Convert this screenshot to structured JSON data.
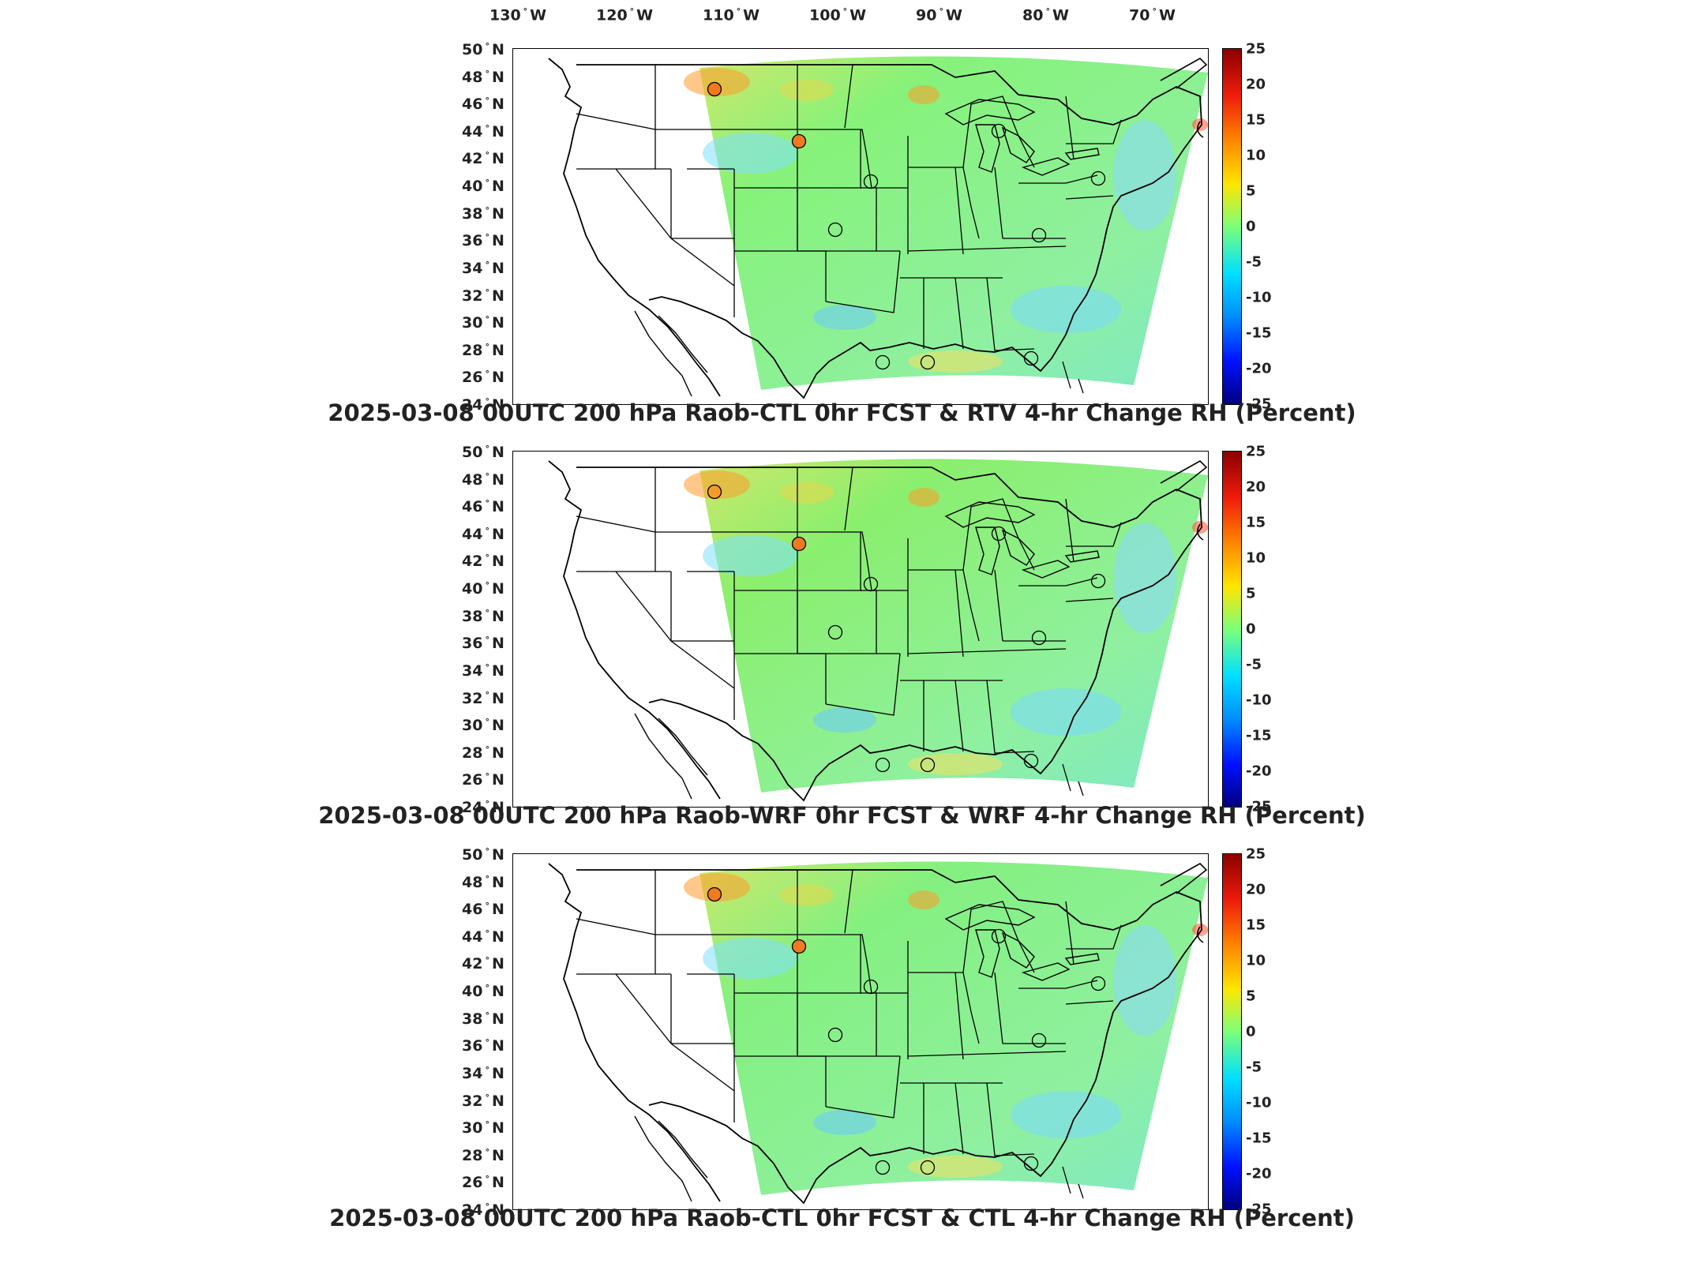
{
  "lon_labels": [
    {
      "deg": "130",
      "hem": "W"
    },
    {
      "deg": "120",
      "hem": "W"
    },
    {
      "deg": "110",
      "hem": "W"
    },
    {
      "deg": "100",
      "hem": "W"
    },
    {
      "deg": "90",
      "hem": "W"
    },
    {
      "deg": "80",
      "hem": "W"
    },
    {
      "deg": "70",
      "hem": "W"
    }
  ],
  "lat_labels": [
    {
      "deg": "50",
      "hem": "N"
    },
    {
      "deg": "48",
      "hem": "N"
    },
    {
      "deg": "46",
      "hem": "N"
    },
    {
      "deg": "44",
      "hem": "N"
    },
    {
      "deg": "42",
      "hem": "N"
    },
    {
      "deg": "40",
      "hem": "N"
    },
    {
      "deg": "38",
      "hem": "N"
    },
    {
      "deg": "36",
      "hem": "N"
    },
    {
      "deg": "34",
      "hem": "N"
    },
    {
      "deg": "32",
      "hem": "N"
    },
    {
      "deg": "30",
      "hem": "N"
    },
    {
      "deg": "28",
      "hem": "N"
    },
    {
      "deg": "26",
      "hem": "N"
    },
    {
      "deg": "24",
      "hem": "N"
    }
  ],
  "colorbar": {
    "ticks": [
      "25",
      "20",
      "15",
      "10",
      "5",
      "0",
      "-5",
      "-10",
      "-15",
      "-20",
      "-25"
    ],
    "colors": [
      "#8b0000",
      "#ee1c0b",
      "#ff8000",
      "#ffe600",
      "#7cff7a",
      "#00e0ff",
      "#0090ff",
      "#0010ff",
      "#00007f"
    ]
  },
  "panels": [
    {
      "title": "2025-03-08 00UTC 200 hPa Raob-CTL 0hr FCST & RTV 4-hr Change RH (Percent)",
      "field_base": "#86f27a",
      "stations": [
        {
          "name": "station-48n-112w",
          "fill": "#f07a1e"
        },
        {
          "name": "station-44n-104w",
          "fill": "#f07a1e"
        },
        {
          "name": "station-45n-84w",
          "fill": "none"
        },
        {
          "name": "station-41n-96w",
          "fill": "none"
        },
        {
          "name": "station-38n-100w",
          "fill": "none"
        },
        {
          "name": "station-37n-80w",
          "fill": "none"
        },
        {
          "name": "station-30n-90w",
          "fill": "none"
        },
        {
          "name": "station-30n-94w",
          "fill": "none"
        },
        {
          "name": "station-30n-82w",
          "fill": "none"
        },
        {
          "name": "station-41n-73w",
          "fill": "none"
        }
      ]
    },
    {
      "title": "2025-03-08 00UTC 200 hPa Raob-WRF 0hr FCST & WRF 4-hr Change RH (Percent)",
      "field_base": "#8aef6e",
      "stations": [
        {
          "name": "station-48n-112w",
          "fill": "#f59a2a"
        },
        {
          "name": "station-44n-104w",
          "fill": "#f07a1e"
        },
        {
          "name": "station-45n-84w",
          "fill": "none"
        },
        {
          "name": "station-41n-96w",
          "fill": "none"
        },
        {
          "name": "station-38n-100w",
          "fill": "none"
        },
        {
          "name": "station-37n-80w",
          "fill": "none"
        },
        {
          "name": "station-30n-90w",
          "fill": "none"
        },
        {
          "name": "station-30n-94w",
          "fill": "none"
        },
        {
          "name": "station-30n-82w",
          "fill": "none"
        },
        {
          "name": "station-41n-73w",
          "fill": "none"
        }
      ]
    },
    {
      "title": "2025-03-08 00UTC 200 hPa Raob-CTL 0hr FCST & CTL 4-hr Change RH (Percent)",
      "field_base": "#84f080",
      "stations": [
        {
          "name": "station-48n-112w",
          "fill": "#f07a1e"
        },
        {
          "name": "station-44n-104w",
          "fill": "#f07a1e"
        },
        {
          "name": "station-45n-84w",
          "fill": "none"
        },
        {
          "name": "station-41n-96w",
          "fill": "none"
        },
        {
          "name": "station-38n-100w",
          "fill": "none"
        },
        {
          "name": "station-37n-80w",
          "fill": "none"
        },
        {
          "name": "station-30n-90w",
          "fill": "none"
        },
        {
          "name": "station-30n-94w",
          "fill": "none"
        },
        {
          "name": "station-30n-82w",
          "fill": "none"
        },
        {
          "name": "station-41n-73w",
          "fill": "none"
        }
      ]
    }
  ]
}
